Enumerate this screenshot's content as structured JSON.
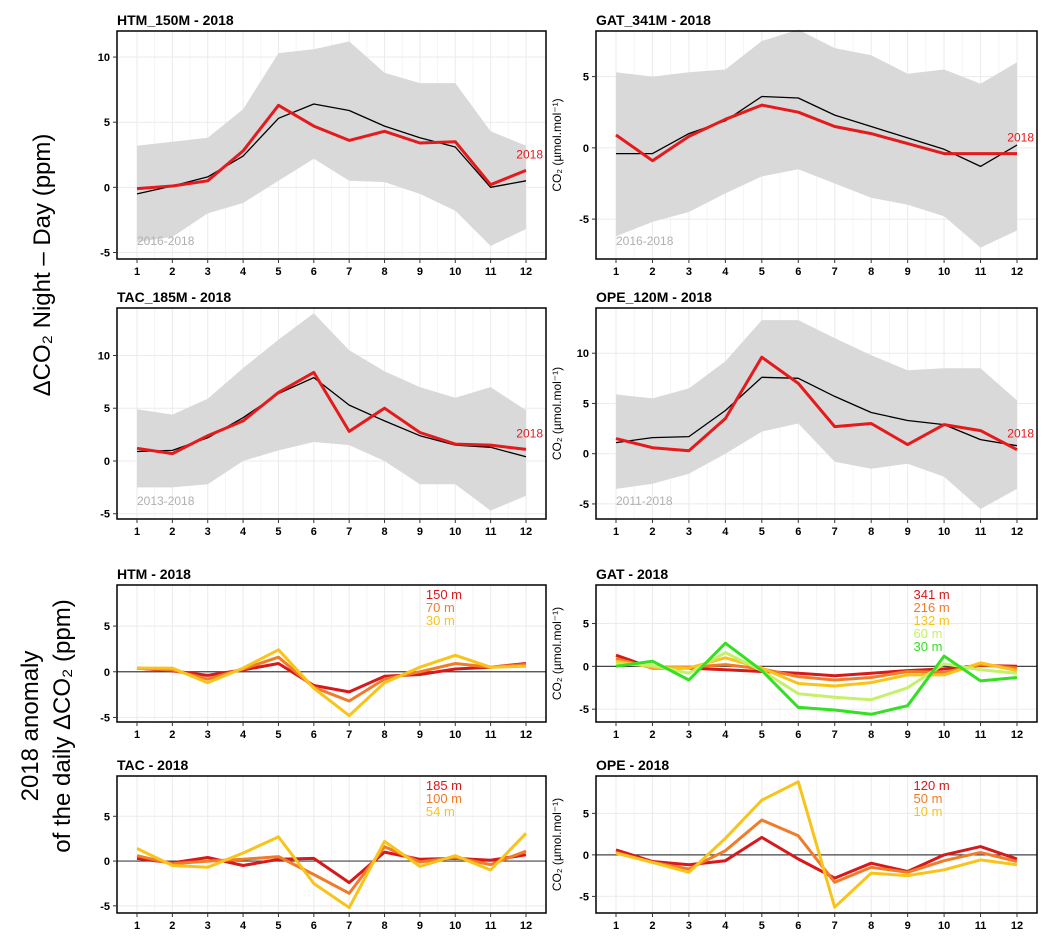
{
  "figure": {
    "left_label": "ΔCO₂ Night – Day (ppm)",
    "left_label_bottom_line1": "2018 anomaly",
    "left_label_bottom_line2": "of the daily ΔCO₂ (ppm)",
    "colors": {
      "band": "#d9d9d9",
      "mean": "#000000",
      "year": "#e41a1c",
      "plot_bg": "#ffffff",
      "grid": "#ebebeb",
      "frame": "#000000"
    }
  },
  "chart_data": [
    {
      "type": "area",
      "title": "HTM_150M - 2018",
      "ylabel": "",
      "categories": [
        "1",
        "2",
        "3",
        "4",
        "5",
        "6",
        "7",
        "8",
        "9",
        "10",
        "11",
        "12"
      ],
      "ylim": [
        -5.5,
        12
      ],
      "yticks": [
        -5,
        0,
        5,
        10
      ],
      "band_label": "2016-2018",
      "year_label": "2018",
      "band": {
        "upper": [
          3.2,
          3.5,
          3.8,
          6,
          10.3,
          10.6,
          11.2,
          8.8,
          8,
          8,
          4.3,
          3.2
        ],
        "lower": [
          -4.2,
          -3.8,
          -2,
          -1.2,
          0.5,
          2.2,
          0.5,
          0.4,
          -0.5,
          -1.8,
          -4.5,
          -3.2
        ]
      },
      "series": [
        {
          "name": "mean",
          "values": [
            -0.5,
            0.1,
            0.8,
            2.4,
            5.3,
            6.4,
            5.9,
            4.7,
            3.8,
            3.1,
            0.0,
            0.5
          ]
        },
        {
          "name": "2018",
          "values": [
            -0.1,
            0.1,
            0.5,
            2.8,
            6.3,
            4.7,
            3.6,
            4.3,
            3.4,
            3.5,
            0.2,
            1.3
          ]
        }
      ]
    },
    {
      "type": "area",
      "title": "GAT_341M - 2018",
      "ylabel": "CO₂ (µmol.mol⁻¹)",
      "categories": [
        "1",
        "2",
        "3",
        "4",
        "5",
        "6",
        "7",
        "8",
        "9",
        "10",
        "11",
        "12"
      ],
      "ylim": [
        -7.8,
        8.2
      ],
      "yticks": [
        -5,
        0,
        5
      ],
      "band_label": "2016-2018",
      "year_label": "2018",
      "band": {
        "upper": [
          5.3,
          5,
          5.3,
          5.5,
          7.5,
          8.3,
          7,
          6.5,
          5.2,
          5.5,
          4.5,
          6
        ],
        "lower": [
          -6.2,
          -5.2,
          -4.5,
          -3.2,
          -2,
          -1.5,
          -2.5,
          -3.5,
          -4,
          -4.8,
          -7,
          -5.8
        ]
      },
      "series": [
        {
          "name": "mean",
          "values": [
            -0.4,
            -0.4,
            1.0,
            1.9,
            3.6,
            3.5,
            2.3,
            1.5,
            0.7,
            -0.1,
            -1.3,
            0.2
          ]
        },
        {
          "name": "2018",
          "values": [
            0.9,
            -0.9,
            0.8,
            2.0,
            3.0,
            2.5,
            1.5,
            1.0,
            0.3,
            -0.4,
            -0.4,
            -0.4
          ]
        }
      ]
    },
    {
      "type": "area",
      "title": "TAC_185M - 2018",
      "ylabel": "",
      "categories": [
        "1",
        "2",
        "3",
        "4",
        "5",
        "6",
        "7",
        "8",
        "9",
        "10",
        "11",
        "12"
      ],
      "ylim": [
        -5.5,
        14.5
      ],
      "yticks": [
        -5,
        0,
        5,
        10
      ],
      "band_label": "2013-2018",
      "year_label": "2018",
      "band": {
        "upper": [
          4.9,
          4.4,
          5.9,
          8.8,
          11.5,
          14,
          10.5,
          8.5,
          7,
          6,
          7,
          4.8
        ],
        "lower": [
          -2.5,
          -2.5,
          -2.2,
          0,
          1,
          1.8,
          1.5,
          0,
          -2.2,
          -2.2,
          -4.7,
          -3.3
        ]
      },
      "series": [
        {
          "name": "mean",
          "values": [
            0.9,
            1.0,
            2.2,
            4.1,
            6.4,
            7.9,
            5.3,
            3.8,
            2.4,
            1.5,
            1.3,
            0.4
          ]
        },
        {
          "name": "2018",
          "values": [
            1.2,
            0.7,
            2.4,
            3.8,
            6.5,
            8.4,
            2.8,
            5.0,
            2.7,
            1.6,
            1.5,
            1.1
          ]
        }
      ]
    },
    {
      "type": "area",
      "title": "OPE_120M - 2018",
      "ylabel": "CO₂ (µmol.mol⁻¹)",
      "categories": [
        "1",
        "2",
        "3",
        "4",
        "5",
        "6",
        "7",
        "8",
        "9",
        "10",
        "11",
        "12"
      ],
      "ylim": [
        -6.5,
        14.5
      ],
      "yticks": [
        -5,
        0,
        5,
        10
      ],
      "band_label": "2011-2018",
      "year_label": "2018",
      "band": {
        "upper": [
          5.9,
          5.5,
          6.5,
          9.2,
          13.3,
          13.3,
          11.5,
          9.8,
          8.3,
          8.5,
          8.5,
          5.3
        ],
        "lower": [
          -3.5,
          -3,
          -2,
          0,
          2.2,
          3,
          -0.8,
          -1.5,
          -1,
          -2.3,
          -5.5,
          -3.5
        ]
      },
      "series": [
        {
          "name": "mean",
          "values": [
            1.1,
            1.6,
            1.7,
            4.3,
            7.6,
            7.5,
            5.7,
            4.1,
            3.3,
            2.9,
            1.4,
            0.8
          ]
        },
        {
          "name": "2018",
          "values": [
            1.5,
            0.6,
            0.3,
            3.5,
            9.6,
            7.0,
            2.7,
            3.0,
            0.9,
            2.9,
            2.3,
            0.4
          ]
        }
      ]
    },
    {
      "type": "line",
      "title": "HTM - 2018",
      "ylabel": "",
      "categories": [
        "1",
        "2",
        "3",
        "4",
        "5",
        "6",
        "7",
        "8",
        "9",
        "10",
        "11",
        "12"
      ],
      "ylim": [
        -5.5,
        9.5
      ],
      "yticks": [
        -5,
        0,
        5
      ],
      "series": [
        {
          "name": "150 m",
          "color": "#d7191c",
          "values": [
            0.4,
            0.1,
            -0.4,
            0.2,
            0.9,
            -1.5,
            -2.2,
            -0.5,
            -0.3,
            0.3,
            0.5,
            0.9
          ]
        },
        {
          "name": "70 m",
          "color": "#f07c2a",
          "values": [
            0.4,
            0.2,
            -0.8,
            0.3,
            1.6,
            -1.7,
            -3.2,
            -0.8,
            0.0,
            0.9,
            0.5,
            0.8
          ]
        },
        {
          "name": "30 m",
          "color": "#f8c41a",
          "values": [
            0.4,
            0.4,
            -1.2,
            0.4,
            2.4,
            -1.8,
            -4.8,
            -1.2,
            0.5,
            1.8,
            0.5,
            0.6
          ]
        }
      ]
    },
    {
      "type": "line",
      "title": "GAT - 2018",
      "ylabel": "CO₂ (µmol.mol⁻¹)",
      "categories": [
        "1",
        "2",
        "3",
        "4",
        "5",
        "6",
        "7",
        "8",
        "9",
        "10",
        "11",
        "12"
      ],
      "ylim": [
        -6.5,
        9.5
      ],
      "yticks": [
        -5,
        0,
        5
      ],
      "series": [
        {
          "name": "341 m",
          "color": "#d7191c",
          "values": [
            1.3,
            -0.2,
            -0.2,
            -0.4,
            -0.6,
            -0.8,
            -1.1,
            -0.8,
            -0.5,
            -0.3,
            0.1,
            0.0
          ]
        },
        {
          "name": "216 m",
          "color": "#f07c2a",
          "values": [
            0.9,
            -0.2,
            -0.1,
            0.2,
            -0.3,
            -1.2,
            -1.6,
            -1.3,
            -0.6,
            -0.7,
            0.2,
            -0.2
          ]
        },
        {
          "name": "132 m",
          "color": "#f8c41a",
          "values": [
            0.6,
            -0.1,
            -0.2,
            1.0,
            -0.2,
            -2.0,
            -2.3,
            -1.9,
            -1.0,
            -1.0,
            0.4,
            -0.5
          ]
        },
        {
          "name": "60 m",
          "color": "#c6f06a",
          "values": [
            0.3,
            0.1,
            -0.8,
            1.6,
            -0.5,
            -3.2,
            -3.6,
            -3.9,
            -2.5,
            0.3,
            -0.4,
            -0.8
          ]
        },
        {
          "name": "30 m",
          "color": "#33e022",
          "values": [
            0.0,
            0.6,
            -1.6,
            2.7,
            -0.5,
            -4.8,
            -5.1,
            -5.6,
            -4.6,
            1.2,
            -1.7,
            -1.3
          ]
        }
      ]
    },
    {
      "type": "line",
      "title": "TAC - 2018",
      "ylabel": "",
      "categories": [
        "1",
        "2",
        "3",
        "4",
        "5",
        "6",
        "7",
        "8",
        "9",
        "10",
        "11",
        "12"
      ],
      "ylim": [
        -5.8,
        9.5
      ],
      "yticks": [
        -5,
        0,
        5
      ],
      "series": [
        {
          "name": "185 m",
          "color": "#d7191c",
          "values": [
            0.3,
            -0.2,
            0.4,
            -0.5,
            0.2,
            0.3,
            -2.4,
            1.0,
            0.2,
            0.3,
            0.1,
            0.7
          ]
        },
        {
          "name": "100 m",
          "color": "#f07c2a",
          "values": [
            0.6,
            -0.3,
            0.0,
            0.2,
            0.5,
            -1.5,
            -3.6,
            1.6,
            -0.1,
            0.4,
            -0.4,
            1.1
          ]
        },
        {
          "name": "54 m",
          "color": "#f8c41a",
          "values": [
            1.4,
            -0.5,
            -0.7,
            0.9,
            2.7,
            -2.5,
            -5.2,
            2.2,
            -0.6,
            0.6,
            -1.0,
            3.1
          ]
        }
      ]
    },
    {
      "type": "line",
      "title": "OPE - 2018",
      "ylabel": "CO₂ (µmol.mol⁻¹)",
      "categories": [
        "1",
        "2",
        "3",
        "4",
        "5",
        "6",
        "7",
        "8",
        "9",
        "10",
        "11",
        "12"
      ],
      "ylim": [
        -7,
        9.5
      ],
      "yticks": [
        -5,
        0,
        5
      ],
      "series": [
        {
          "name": "120 m",
          "color": "#d7191c",
          "values": [
            0.6,
            -0.8,
            -1.2,
            -0.7,
            2.1,
            -0.5,
            -2.8,
            -1.0,
            -2.0,
            0.0,
            1.0,
            -0.5
          ]
        },
        {
          "name": "50 m",
          "color": "#f07c2a",
          "values": [
            0.3,
            -0.9,
            -1.7,
            0.5,
            4.2,
            2.3,
            -3.3,
            -1.5,
            -2.1,
            -0.7,
            0.3,
            -0.8
          ]
        },
        {
          "name": "10 m",
          "color": "#f8c41a",
          "values": [
            0.2,
            -0.9,
            -2.1,
            2.0,
            6.6,
            8.8,
            -6.3,
            -2.2,
            -2.5,
            -1.8,
            -0.6,
            -1.2
          ]
        }
      ]
    }
  ]
}
